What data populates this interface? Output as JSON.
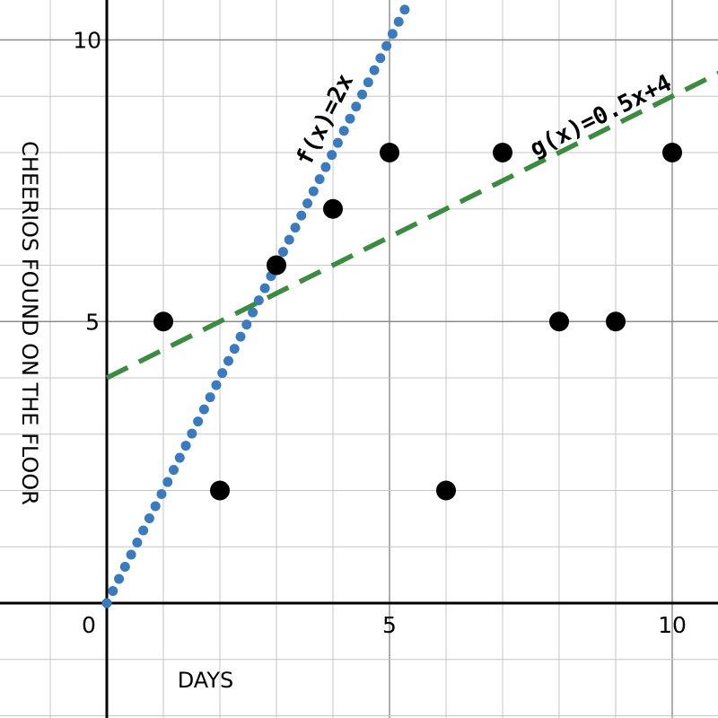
{
  "chart_data": {
    "type": "scatter",
    "title": "",
    "xlabel": "DAYS",
    "ylabel": "CHEERIOS FOUND ON THE FLOOR",
    "xlim": [
      -1.9,
      10.85
    ],
    "ylim": [
      -2.05,
      10.7
    ],
    "grid": true,
    "x_ticks": [
      0,
      5,
      10
    ],
    "y_ticks": [
      5,
      10
    ],
    "tick_labels": {
      "origin": "0",
      "x5": "5",
      "x10": "10",
      "y5": "5",
      "y10": "10"
    },
    "series": [
      {
        "points": [
          {
            "x": 1,
            "y": 5
          },
          {
            "x": 2,
            "y": 2
          },
          {
            "x": 3,
            "y": 6
          },
          {
            "x": 4,
            "y": 7
          },
          {
            "x": 5,
            "y": 8
          },
          {
            "x": 6,
            "y": 2
          },
          {
            "x": 7,
            "y": 8
          },
          {
            "x": 8,
            "y": 5
          },
          {
            "x": 9,
            "y": 5
          },
          {
            "x": 10,
            "y": 8
          }
        ],
        "color": "#000000"
      }
    ],
    "functions": [
      {
        "name": "f(x)=2x",
        "label": "f(x)=2x",
        "slope": 2,
        "intercept": 0,
        "style": "dotted",
        "color": "#3a7abf"
      },
      {
        "name": "g(x)=0.5x+4",
        "label": "g(x)=0.5x+4",
        "slope": 0.5,
        "intercept": 4,
        "style": "dashed",
        "color": "#3b8b41"
      }
    ]
  }
}
